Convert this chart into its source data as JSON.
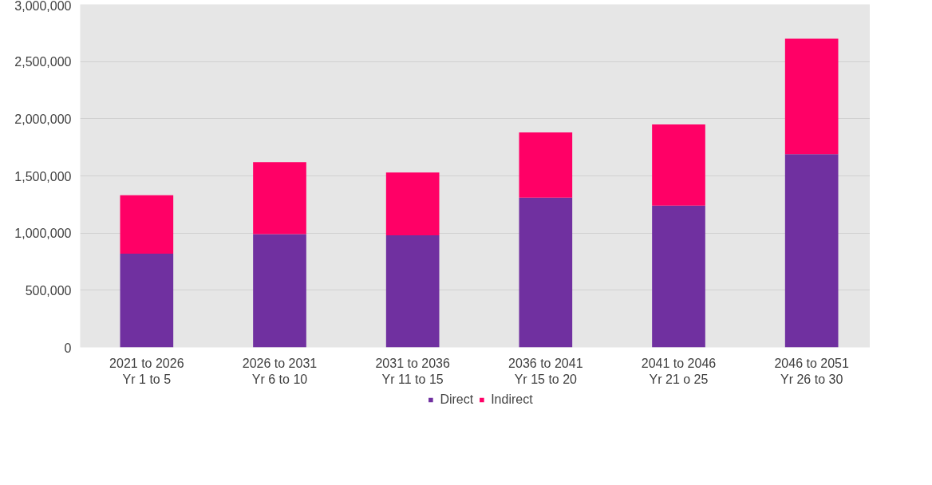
{
  "chart_data": {
    "type": "bar",
    "stacked": true,
    "categories": [
      "2021 to 2026\nYr 1 to 5",
      "2026 to 2031\nYr 6 to 10",
      "2031 to 2036\nYr 11 to 15",
      "2036 to 2041\nYr 15 to 20",
      "2041 to 2046\nYr 21 o 25",
      "2046 to 2051\nYr 26 to 30"
    ],
    "series": [
      {
        "name": "Direct",
        "color": "#7030a0",
        "values": [
          820000,
          990000,
          980000,
          1310000,
          1240000,
          1690000
        ]
      },
      {
        "name": "Indirect",
        "color": "#ff0066",
        "values": [
          510000,
          630000,
          550000,
          570000,
          710000,
          1010000
        ]
      }
    ],
    "ylim": [
      0,
      3000000
    ],
    "yticks": [
      {
        "value": 0,
        "label": "0"
      },
      {
        "value": 500000,
        "label": "500,000"
      },
      {
        "value": 1000000,
        "label": "1,000,000"
      },
      {
        "value": 1500000,
        "label": "1,500,000"
      },
      {
        "value": 2000000,
        "label": "2,000,000"
      },
      {
        "value": 2500000,
        "label": "2,500,000"
      },
      {
        "value": 3000000,
        "label": "3,000,000"
      }
    ],
    "grid": "y",
    "legend": "bottom"
  }
}
